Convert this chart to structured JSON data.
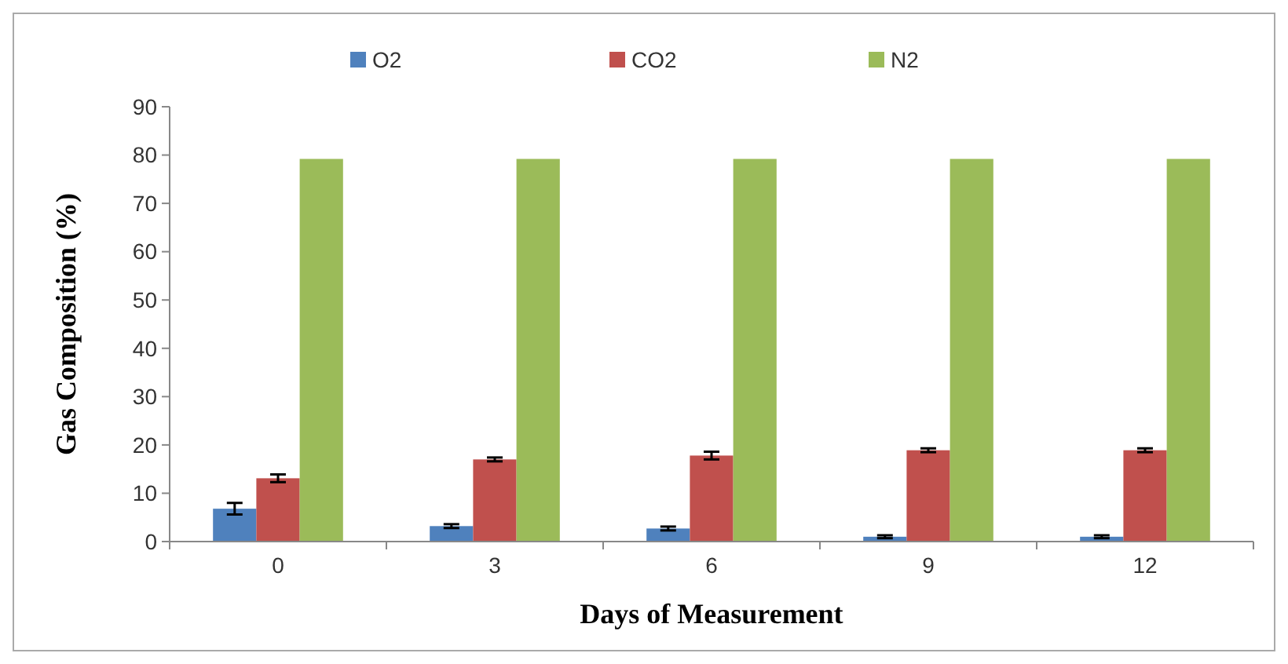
{
  "chart_data": {
    "type": "bar",
    "xlabel": "Days of Measurement",
    "ylabel": "Gas Composition (%)",
    "categories": [
      "0",
      "3",
      "6",
      "9",
      "12"
    ],
    "series": [
      {
        "name": "O2",
        "color": "#4f81bd",
        "values": [
          6.8,
          3.2,
          2.7,
          1,
          1
        ],
        "errors": [
          1.2,
          0.4,
          0.4,
          0.3,
          0.3
        ]
      },
      {
        "name": "CO2",
        "color": "#c0504d",
        "values": [
          13.1,
          17,
          17.8,
          18.9,
          18.9
        ],
        "errors": [
          0.8,
          0.4,
          0.8,
          0.4,
          0.4
        ]
      },
      {
        "name": "N2",
        "color": "#9bbb59",
        "values": [
          79.2,
          79.2,
          79.2,
          79.2,
          79.2
        ]
      }
    ],
    "ylim": [
      0,
      90
    ],
    "yticks": [
      0,
      10,
      20,
      30,
      40,
      50,
      60,
      70,
      80,
      90
    ],
    "grid": false,
    "legend": "top"
  }
}
